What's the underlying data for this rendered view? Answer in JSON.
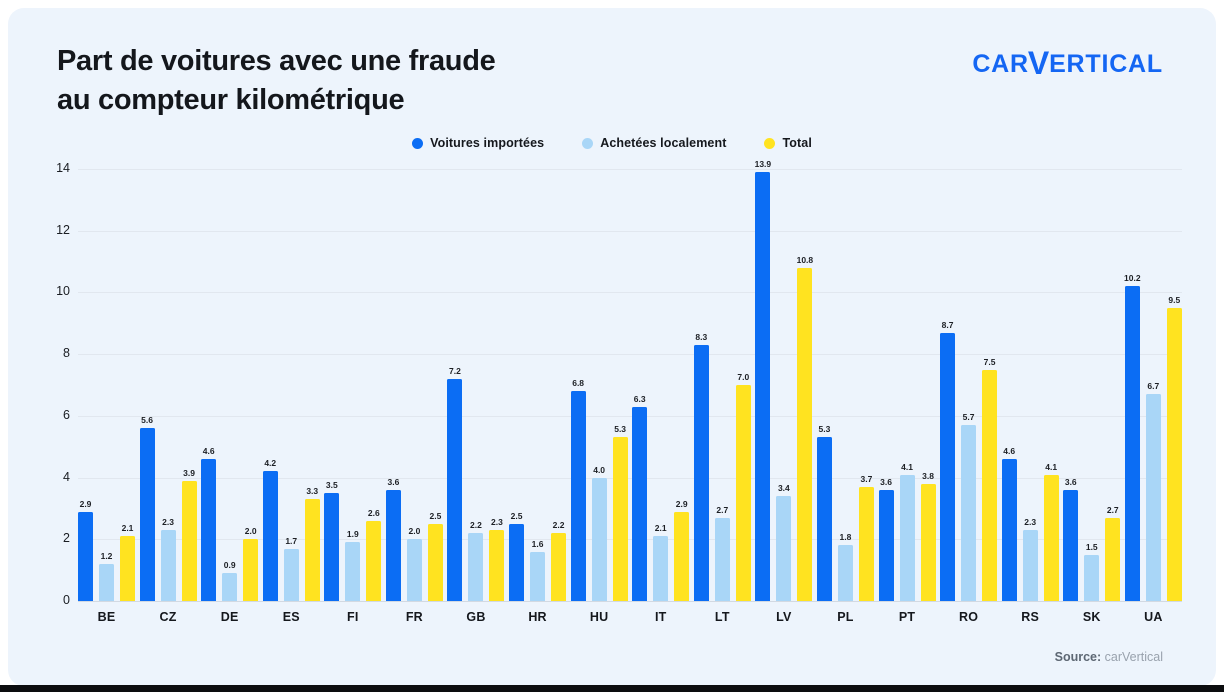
{
  "page": {
    "title_line1": "Part de voitures avec une fraude",
    "title_line2": "au compteur kilométrique",
    "logo": {
      "part1": "CAR",
      "part2": "V",
      "part3": "ERTICAL"
    },
    "source_label": "Source:",
    "source_value": "carVertical"
  },
  "colors": {
    "card_background": "#edf4fc",
    "imported_blue": "#0b6df4",
    "local_light_blue": "#a9d6f7",
    "total_yellow": "#ffe320",
    "logo_blue": "#1466f3",
    "grid_line": "#e1e7ef",
    "bottom_bar": "#0c0d0f"
  },
  "chart_data": {
    "type": "bar",
    "title": "Part de voitures avec une fraude au compteur kilométrique",
    "xlabel": "",
    "ylabel": "",
    "ylim": [
      0,
      14
    ],
    "yticks": [
      0,
      2,
      4,
      6,
      8,
      10,
      12,
      14
    ],
    "grid": true,
    "legend_position": "top",
    "value_labels": true,
    "value_label_decimals": 1,
    "categories": [
      "BE",
      "CZ",
      "DE",
      "ES",
      "FI",
      "FR",
      "GB",
      "HR",
      "HU",
      "IT",
      "LT",
      "LV",
      "PL",
      "PT",
      "RO",
      "RS",
      "SK",
      "UA"
    ],
    "series": [
      {
        "name": "Voitures importées",
        "color": "#0b6df4",
        "values": [
          2.9,
          5.6,
          4.6,
          4.2,
          3.5,
          3.6,
          7.2,
          2.5,
          6.8,
          6.3,
          8.3,
          13.9,
          5.3,
          3.6,
          8.7,
          4.6,
          3.6,
          10.2
        ]
      },
      {
        "name": "Achetées localement",
        "color": "#a9d6f7",
        "values": [
          1.2,
          2.3,
          0.9,
          1.7,
          1.9,
          2.0,
          2.2,
          1.6,
          4.0,
          2.1,
          2.7,
          3.4,
          1.8,
          4.1,
          5.7,
          2.3,
          1.5,
          6.7
        ]
      },
      {
        "name": "Total",
        "color": "#ffe320",
        "values": [
          2.1,
          3.9,
          2.0,
          3.3,
          2.6,
          2.5,
          2.3,
          2.2,
          5.3,
          2.9,
          7.0,
          10.8,
          3.7,
          3.8,
          7.5,
          4.1,
          2.7,
          9.5
        ]
      }
    ]
  }
}
